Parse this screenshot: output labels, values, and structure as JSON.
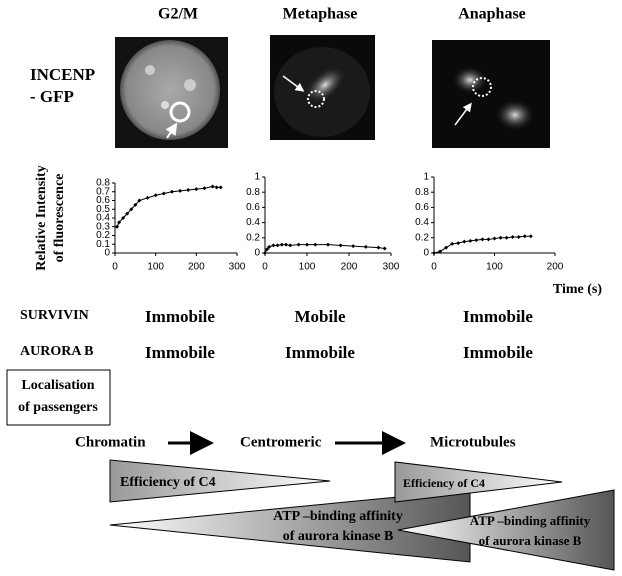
{
  "columns": [
    "G2/M",
    "Metaphase",
    "Anaphase"
  ],
  "probe_label": [
    "INCENP",
    "- GFP"
  ],
  "chart_data": [
    {
      "type": "line",
      "ylabel": [
        "Relative Intensity",
        "of fluorescence"
      ],
      "x": [
        5,
        10,
        20,
        30,
        40,
        50,
        60,
        80,
        100,
        120,
        140,
        160,
        180,
        200,
        220,
        240,
        250,
        260
      ],
      "series": [
        {
          "color": "#000000",
          "values": [
            0.3,
            0.35,
            0.4,
            0.45,
            0.5,
            0.55,
            0.6,
            0.63,
            0.66,
            0.68,
            0.7,
            0.71,
            0.72,
            0.73,
            0.74,
            0.76,
            0.75,
            0.75
          ]
        }
      ],
      "xlim": [
        0,
        300
      ],
      "xticks": [
        0,
        100,
        200,
        300
      ],
      "ylim": [
        0,
        0.8
      ],
      "yticks": [
        0,
        0.1,
        0.2,
        0.3,
        0.4,
        0.5,
        0.6,
        0.7,
        0.8
      ]
    },
    {
      "type": "line",
      "x": [
        0,
        5,
        10,
        20,
        30,
        40,
        50,
        60,
        80,
        100,
        120,
        150,
        180,
        210,
        240,
        270,
        285
      ],
      "series": [
        {
          "color": "#000000",
          "values": [
            0,
            0.05,
            0.08,
            0.1,
            0.1,
            0.11,
            0.11,
            0.1,
            0.11,
            0.11,
            0.11,
            0.11,
            0.1,
            0.09,
            0.08,
            0.07,
            0.06
          ]
        }
      ],
      "xlim": [
        0,
        300
      ],
      "xticks": [
        0,
        100,
        200,
        300
      ],
      "ylim": [
        0,
        1
      ],
      "yticks": [
        0,
        0.2,
        0.4,
        0.6,
        0.8,
        1
      ]
    },
    {
      "type": "line",
      "xlabel": "Time (s)",
      "x": [
        0,
        10,
        20,
        30,
        40,
        50,
        60,
        70,
        80,
        90,
        100,
        110,
        120,
        130,
        140,
        150,
        160
      ],
      "series": [
        {
          "color": "#000000",
          "values": [
            0,
            0.02,
            0.07,
            0.12,
            0.13,
            0.15,
            0.16,
            0.17,
            0.18,
            0.18,
            0.19,
            0.2,
            0.2,
            0.21,
            0.21,
            0.22,
            0.22
          ]
        }
      ],
      "xlim": [
        0,
        200
      ],
      "xticks": [
        0,
        100,
        200
      ],
      "ylim": [
        0,
        1
      ],
      "yticks": [
        0,
        0.2,
        0.4,
        0.6,
        0.8,
        1
      ]
    }
  ],
  "rows": [
    {
      "label": "SURVIVIN",
      "values": [
        "Immobile",
        "Mobile",
        "Immobile"
      ]
    },
    {
      "label": "AURORA B",
      "values": [
        "Immobile",
        "Immobile",
        "Immobile"
      ]
    }
  ],
  "localisation_box": [
    "Localisation",
    "of passengers"
  ],
  "flow": [
    "Chromatin",
    "Centromeric",
    "Microtubules"
  ],
  "triangles": [
    [
      "Efficiency of C4"
    ],
    [
      "ATP –binding affinity",
      "of aurora kinase B"
    ],
    [
      "Efficiency of C4"
    ],
    [
      "ATP –binding affinity",
      "of aurora kinase B"
    ]
  ]
}
